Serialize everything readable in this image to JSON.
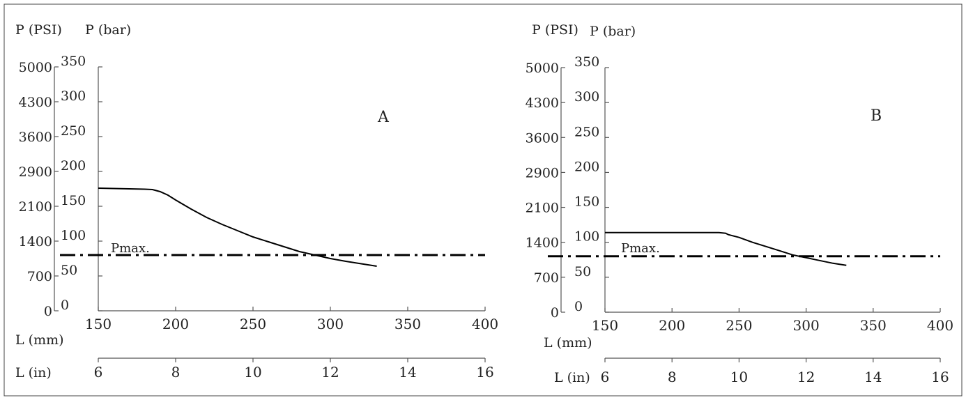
{
  "chart_data": [
    {
      "type": "line",
      "panel_label": "A",
      "ylabel_psi": "P (PSI)",
      "ylabel_bar": "P (bar)",
      "xlabel_mm": "L (mm)",
      "xlabel_in": "L (in)",
      "psi_ticks": [
        "5000",
        "4300",
        "3600",
        "2900",
        "2100",
        "1400",
        "700",
        "0"
      ],
      "bar_ticks": [
        "350",
        "300",
        "250",
        "200",
        "150",
        "100",
        "50",
        "0"
      ],
      "mm_ticks": [
        "150",
        "200",
        "250",
        "300",
        "350",
        "400"
      ],
      "in_ticks": [
        "6",
        "8",
        "10",
        "12",
        "14",
        "16"
      ],
      "xlim_mm": [
        150,
        400
      ],
      "ylim_bar": [
        0,
        350
      ],
      "xlim_in": [
        6,
        16
      ],
      "pmax_label": "Pmax.",
      "pmax_bar": 80,
      "series": [
        {
          "x": [
            150,
            160,
            170,
            180,
            185,
            190,
            195,
            200,
            210,
            220,
            230,
            240,
            250,
            260,
            270,
            280,
            290,
            300,
            310,
            320,
            330
          ],
          "y": [
            176,
            175.5,
            175,
            174.5,
            174,
            171,
            166,
            159,
            146,
            134,
            124,
            115,
            106,
            99,
            92,
            85,
            80,
            75,
            71,
            67.5,
            64
          ]
        }
      ]
    },
    {
      "type": "line",
      "panel_label": "B",
      "ylabel_psi": "P (PSI)",
      "ylabel_bar": "P (bar)",
      "xlabel_mm": "L (mm)",
      "xlabel_in": "L (in)",
      "psi_ticks": [
        "5000",
        "4300",
        "3600",
        "2900",
        "2100",
        "1400",
        "700",
        "0"
      ],
      "bar_ticks": [
        "350",
        "300",
        "250",
        "200",
        "150",
        "100",
        "50",
        "0"
      ],
      "mm_ticks": [
        "150",
        "200",
        "250",
        "300",
        "350",
        "400"
      ],
      "in_ticks": [
        "6",
        "8",
        "10",
        "12",
        "14",
        "16"
      ],
      "xlim_mm": [
        150,
        400
      ],
      "ylim_bar": [
        0,
        350
      ],
      "xlim_in": [
        6,
        16
      ],
      "pmax_label": "Pmax.",
      "pmax_bar": 80,
      "series": [
        {
          "x": [
            150,
            180,
            210,
            235,
            240,
            242,
            250,
            260,
            270,
            280,
            290,
            300,
            310,
            320,
            330
          ],
          "y": [
            114,
            114,
            114,
            114,
            113,
            111,
            107,
            100,
            94,
            88,
            82,
            78,
            74,
            70,
            67
          ]
        }
      ]
    }
  ]
}
